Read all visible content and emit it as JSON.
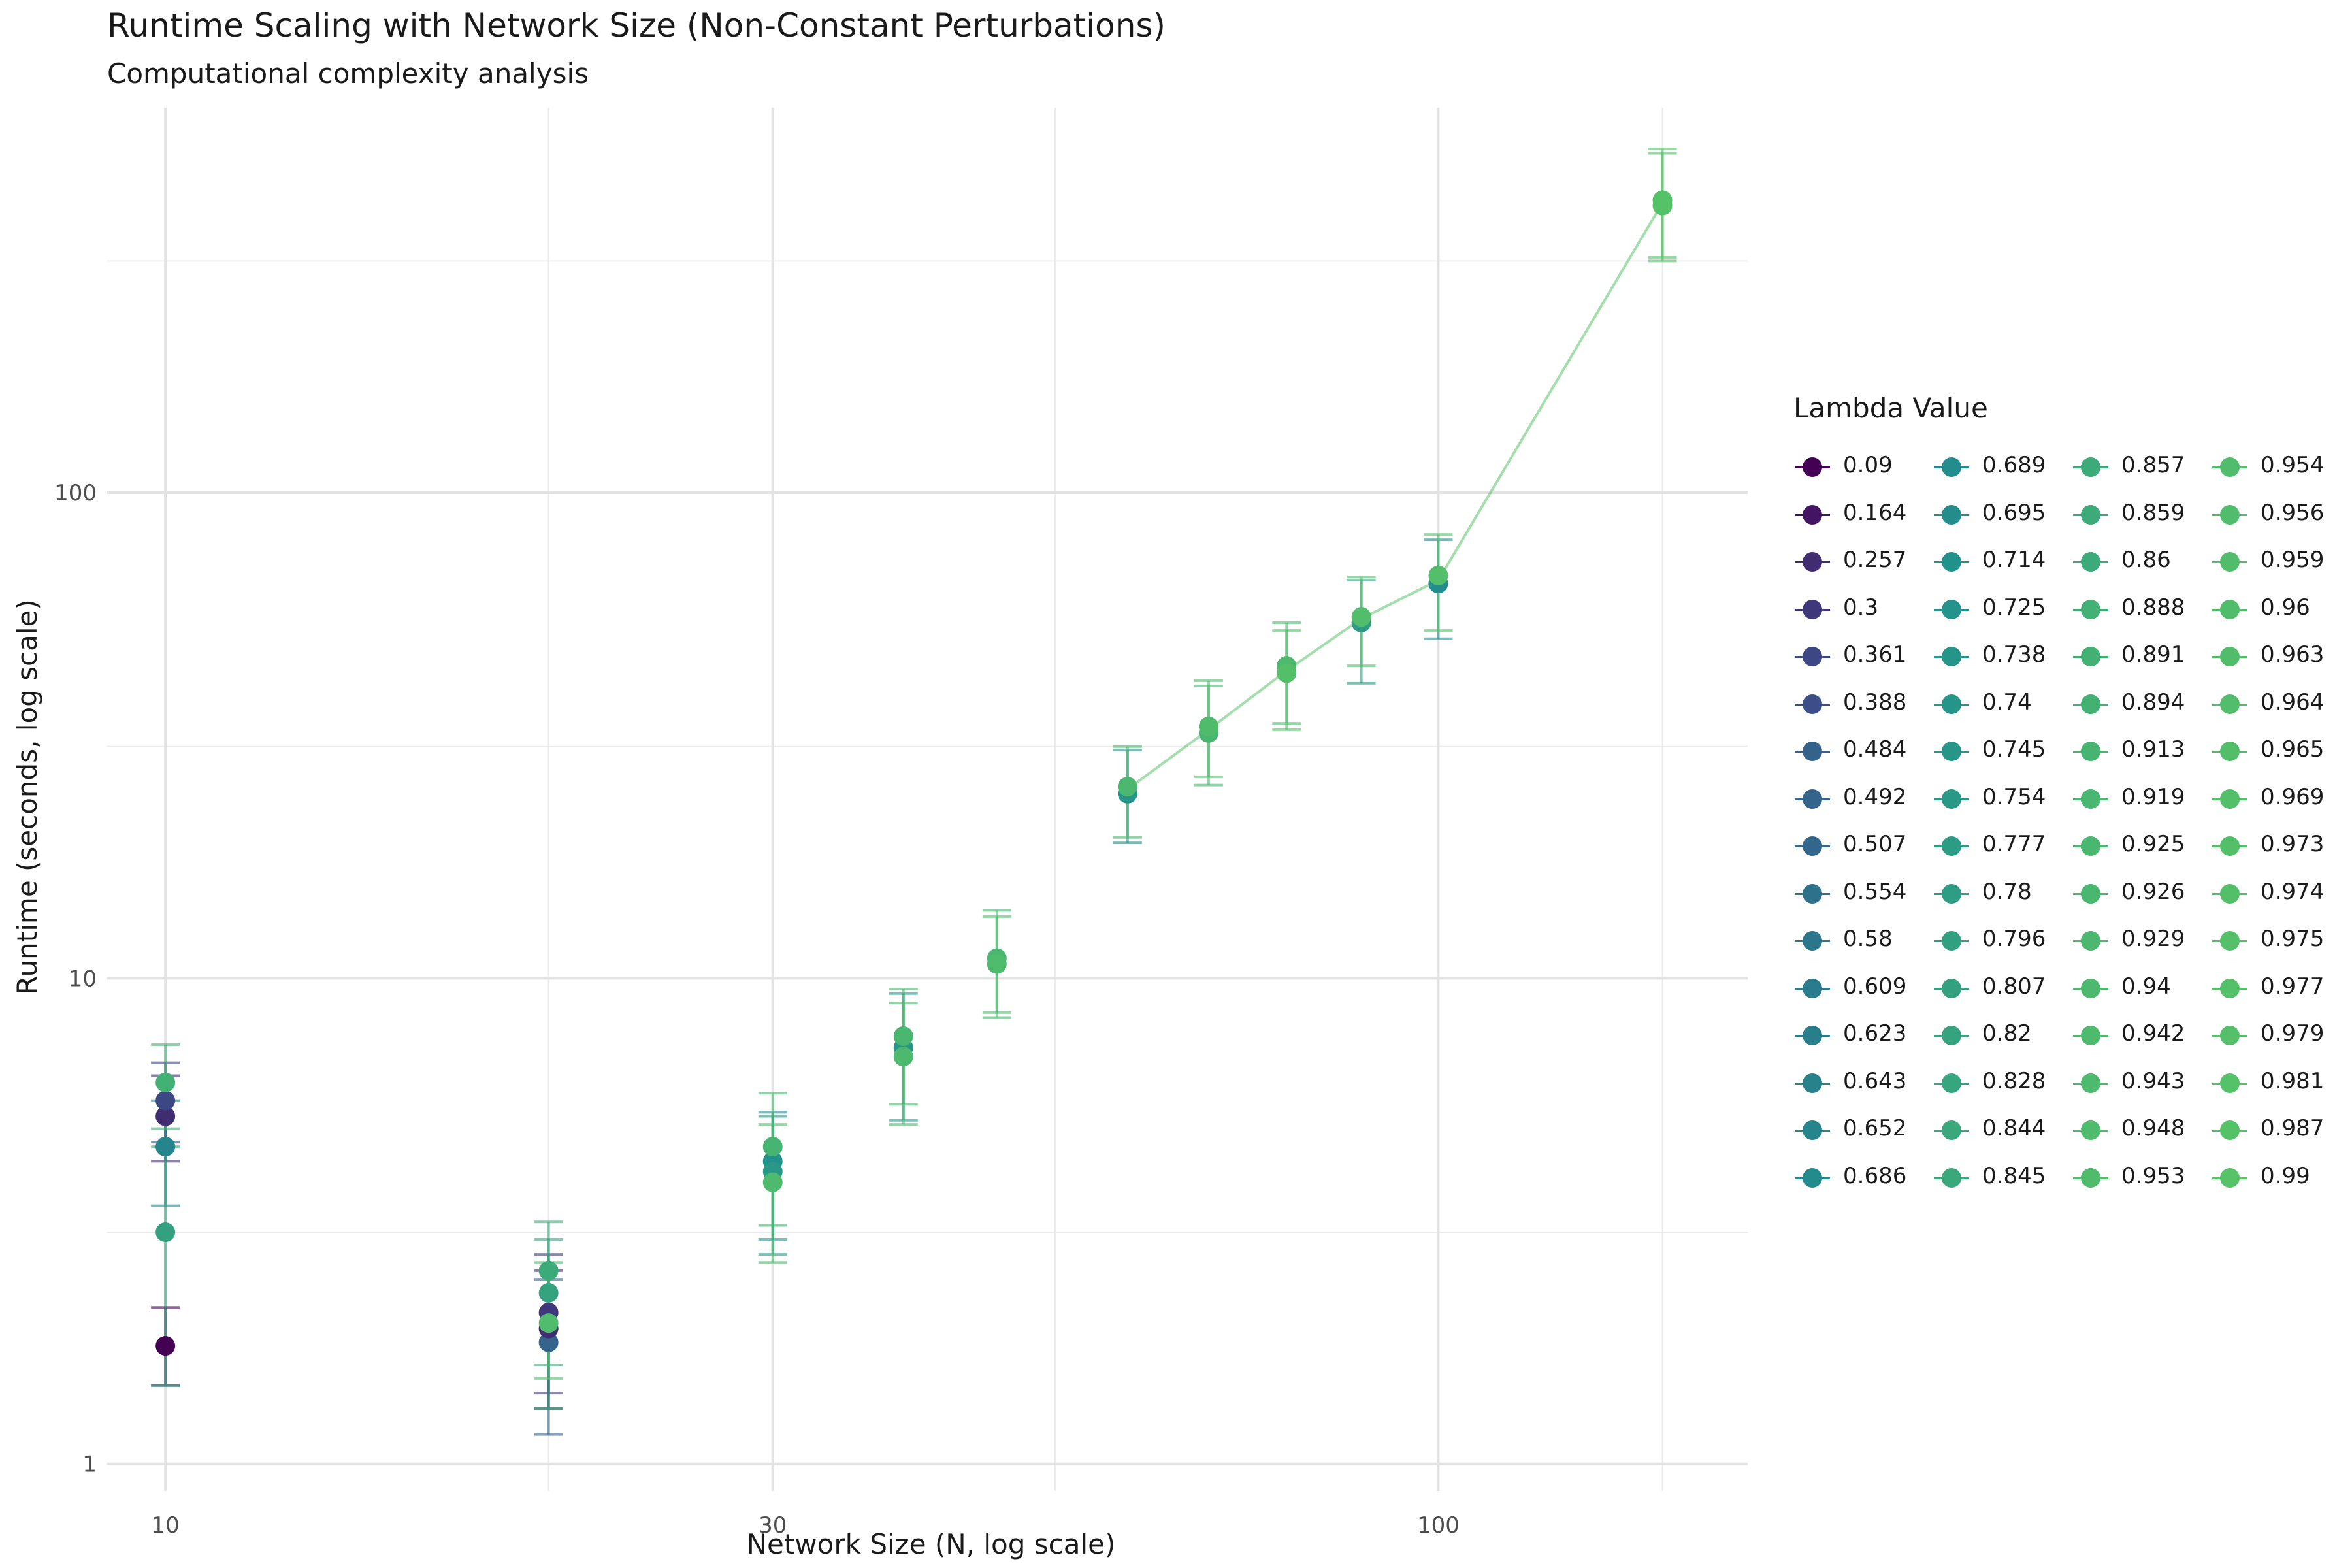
{
  "chart_data": {
    "type": "scatter",
    "title": "Runtime Scaling with Network Size (Non-Constant Perturbations)",
    "subtitle": "Computational complexity analysis",
    "xlabel": "Network Size (N, log scale)",
    "ylabel": "Runtime (seconds, log scale)",
    "x_scale": "log",
    "y_scale": "log",
    "xlim": [
      9,
      175
    ],
    "ylim": [
      0.88,
      620
    ],
    "x_ticks": [
      10,
      30,
      100
    ],
    "y_ticks": [
      1,
      10,
      100
    ],
    "grid": true,
    "legend_title": "Lambda Value",
    "legend_position": "right",
    "legend_labels": [
      "0.09",
      "0.164",
      "0.257",
      "0.3",
      "0.361",
      "0.388",
      "0.484",
      "0.492",
      "0.507",
      "0.554",
      "0.58",
      "0.609",
      "0.623",
      "0.643",
      "0.652",
      "0.686",
      "0.689",
      "0.695",
      "0.714",
      "0.725",
      "0.738",
      "0.74",
      "0.745",
      "0.754",
      "0.777",
      "0.78",
      "0.796",
      "0.807",
      "0.82",
      "0.828",
      "0.844",
      "0.845",
      "0.857",
      "0.859",
      "0.86",
      "0.888",
      "0.891",
      "0.894",
      "0.913",
      "0.919",
      "0.925",
      "0.926",
      "0.929",
      "0.94",
      "0.942",
      "0.943",
      "0.948",
      "0.953",
      "0.954",
      "0.956",
      "0.959",
      "0.96",
      "0.963",
      "0.964",
      "0.965",
      "0.969",
      "0.973",
      "0.974",
      "0.975",
      "0.977",
      "0.979",
      "0.981",
      "0.987",
      "0.99"
    ],
    "points": [
      {
        "n": 10,
        "lambda": 0.09,
        "runtime": 1.75,
        "err_low": 1.45,
        "err_high": 2.1
      },
      {
        "n": 10,
        "lambda": 0.257,
        "runtime": 5.2,
        "err_low": 4.2,
        "err_high": 6.3
      },
      {
        "n": 10,
        "lambda": 0.361,
        "runtime": 5.6,
        "err_low": 4.6,
        "err_high": 6.7
      },
      {
        "n": 10,
        "lambda": 0.652,
        "runtime": 4.5,
        "err_low": 3.4,
        "err_high": 5.6
      },
      {
        "n": 10,
        "lambda": 0.807,
        "runtime": 3.0,
        "err_low": 1.45,
        "err_high": 4.5
      },
      {
        "n": 10,
        "lambda": 0.891,
        "runtime": 6.1,
        "err_low": 4.9,
        "err_high": 7.3
      },
      {
        "n": 20,
        "lambda": 0.492,
        "runtime": 1.78,
        "err_low": 1.15,
        "err_high": 2.4
      },
      {
        "n": 20,
        "lambda": 0.257,
        "runtime": 1.9,
        "err_low": 1.3,
        "err_high": 2.5
      },
      {
        "n": 20,
        "lambda": 0.3,
        "runtime": 2.05,
        "err_low": 1.4,
        "err_high": 2.7
      },
      {
        "n": 20,
        "lambda": 0.82,
        "runtime": 2.25,
        "err_low": 1.3,
        "err_high": 2.9
      },
      {
        "n": 20,
        "lambda": 0.857,
        "runtime": 2.5,
        "err_low": 1.6,
        "err_high": 3.15
      },
      {
        "n": 20,
        "lambda": 0.954,
        "runtime": 1.95,
        "err_low": 1.5,
        "err_high": 2.6
      },
      {
        "n": 30,
        "lambda": 0.714,
        "runtime": 4.2,
        "err_low": 2.9,
        "err_high": 5.3
      },
      {
        "n": 30,
        "lambda": 0.754,
        "runtime": 4.0,
        "err_low": 2.7,
        "err_high": 5.2
      },
      {
        "n": 30,
        "lambda": 0.913,
        "runtime": 4.5,
        "err_low": 3.1,
        "err_high": 5.8
      },
      {
        "n": 30,
        "lambda": 0.943,
        "runtime": 3.8,
        "err_low": 2.6,
        "err_high": 5.0
      },
      {
        "n": 38,
        "lambda": 0.745,
        "runtime": 7.2,
        "err_low": 5.1,
        "err_high": 9.3
      },
      {
        "n": 38,
        "lambda": 0.919,
        "runtime": 7.6,
        "err_low": 5.5,
        "err_high": 9.5
      },
      {
        "n": 38,
        "lambda": 0.94,
        "runtime": 6.9,
        "err_low": 5.0,
        "err_high": 8.9
      },
      {
        "n": 45,
        "lambda": 0.925,
        "runtime": 11.0,
        "err_low": 8.3,
        "err_high": 13.8
      },
      {
        "n": 45,
        "lambda": 0.948,
        "runtime": 10.7,
        "err_low": 8.5,
        "err_high": 13.4
      },
      {
        "n": 57,
        "lambda": 0.738,
        "runtime": 24.0,
        "err_low": 19.0,
        "err_high": 29.5
      },
      {
        "n": 57,
        "lambda": 0.929,
        "runtime": 24.8,
        "err_low": 19.5,
        "err_high": 30.0
      },
      {
        "n": 66,
        "lambda": 0.926,
        "runtime": 32.0,
        "err_low": 25.0,
        "err_high": 40.0
      },
      {
        "n": 66,
        "lambda": 0.953,
        "runtime": 33.0,
        "err_low": 26.0,
        "err_high": 41.0
      },
      {
        "n": 76,
        "lambda": 0.942,
        "runtime": 44.0,
        "err_low": 33.5,
        "err_high": 54.0
      },
      {
        "n": 76,
        "lambda": 0.973,
        "runtime": 42.5,
        "err_low": 32.5,
        "err_high": 52.0
      },
      {
        "n": 87,
        "lambda": 0.777,
        "runtime": 54.0,
        "err_low": 40.5,
        "err_high": 66.0
      },
      {
        "n": 87,
        "lambda": 0.964,
        "runtime": 55.5,
        "err_low": 44.0,
        "err_high": 67.0
      },
      {
        "n": 100,
        "lambda": 0.689,
        "runtime": 65.0,
        "err_low": 50.0,
        "err_high": 80.0
      },
      {
        "n": 100,
        "lambda": 0.969,
        "runtime": 67.5,
        "err_low": 52.0,
        "err_high": 82.0
      },
      {
        "n": 150,
        "lambda": 0.981,
        "runtime": 390.0,
        "err_low": 300.0,
        "err_high": 500.0
      },
      {
        "n": 150,
        "lambda": 0.987,
        "runtime": 400.0,
        "err_low": 305.0,
        "err_high": 510.0
      }
    ],
    "series": [
      {
        "lambda": 0.99,
        "x": [
          57,
          66,
          76,
          87,
          100,
          150
        ],
        "y": [
          24.5,
          32.5,
          43.0,
          55.0,
          66.0,
          395.0
        ]
      }
    ]
  }
}
